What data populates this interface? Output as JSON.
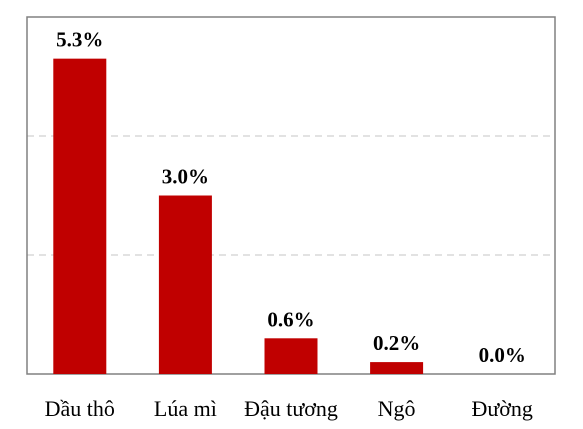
{
  "chart_data": {
    "type": "bar",
    "title": "",
    "xlabel": "",
    "ylabel": "",
    "categories": [
      "Dầu thô",
      "Lúa mì",
      "Đậu tương",
      "Ngô",
      "Đường"
    ],
    "values": [
      5.3,
      3.0,
      0.6,
      0.2,
      0.0
    ],
    "value_labels": [
      "5.3%",
      "3.0%",
      "0.6%",
      "0.2%",
      "0.0%"
    ],
    "ylim": [
      0,
      6
    ],
    "gridlines": [
      2,
      4
    ],
    "grid": true,
    "legend": "none",
    "colors": {
      "bar": "#C00000",
      "grid": "#D0D0D0",
      "frame": "#808080"
    }
  }
}
